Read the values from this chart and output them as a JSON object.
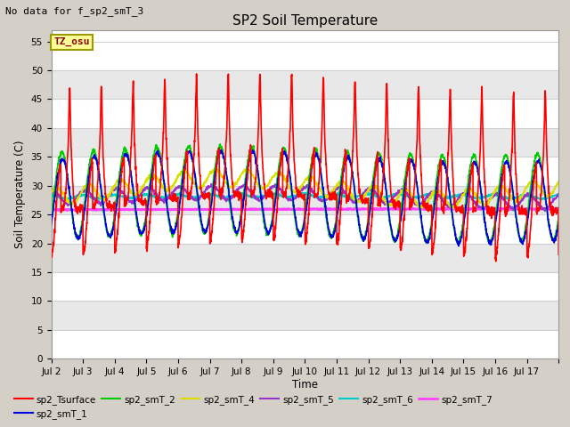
{
  "title": "SP2 Soil Temperature",
  "subtitle": "No data for f_sp2_smT_3",
  "ylabel": "Soil Temperature (C)",
  "xlabel": "Time",
  "tz_label": "TZ_osu",
  "ylim": [
    0,
    57
  ],
  "yticks": [
    0,
    5,
    10,
    15,
    20,
    25,
    30,
    35,
    40,
    45,
    50,
    55
  ],
  "fig_facecolor": "#d4d0c8",
  "plot_facecolor": "#ffffff",
  "grid_color": "#d0d0d0",
  "series": {
    "sp2_Tsurface": {
      "color": "#ff0000",
      "lw": 1.2
    },
    "sp2_smT_1": {
      "color": "#0000dd",
      "lw": 1.2
    },
    "sp2_smT_2": {
      "color": "#00cc00",
      "lw": 1.2
    },
    "sp2_smT_4": {
      "color": "#dddd00",
      "lw": 1.2
    },
    "sp2_smT_5": {
      "color": "#9933cc",
      "lw": 1.2
    },
    "sp2_smT_6": {
      "color": "#00cccc",
      "lw": 1.2
    },
    "sp2_smT_7": {
      "color": "#ff44ff",
      "lw": 1.8
    }
  },
  "xticklabels": [
    "Jul 2",
    "Jul 3",
    "Jul 4",
    "Jul 5",
    "Jul 6",
    "Jul 7",
    "Jul 8",
    "Jul 9",
    "Jul 10",
    "Jul 11",
    "Jul 12",
    "Jul 13",
    "Jul 14",
    "Jul 15",
    "Jul 16",
    "Jul 17"
  ],
  "n_days": 16,
  "points_per_day": 144
}
